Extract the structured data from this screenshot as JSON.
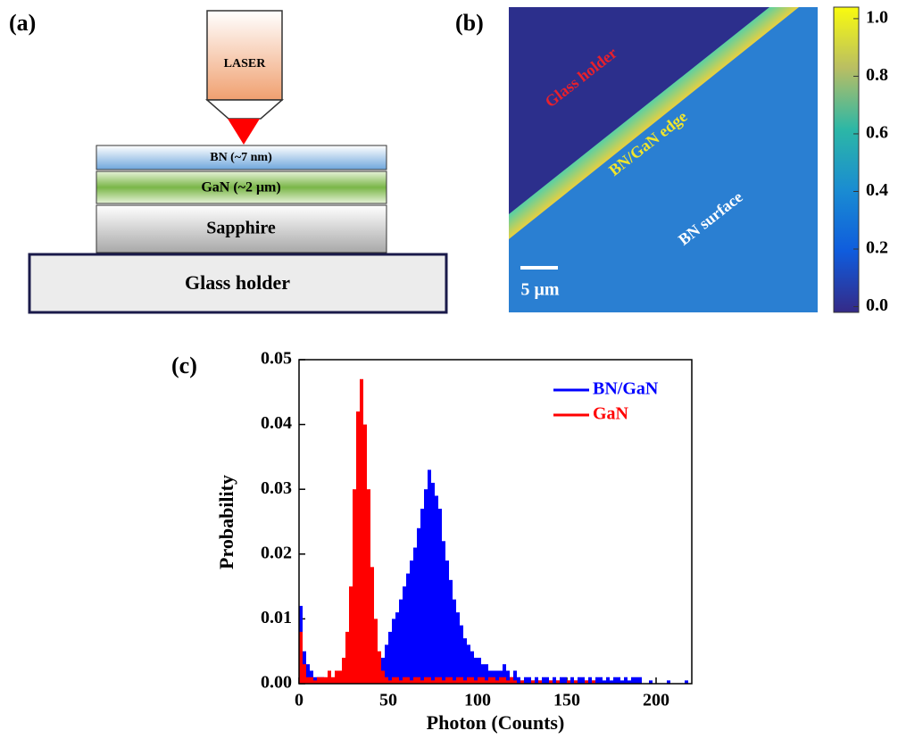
{
  "panel_a": {
    "label": "(a)",
    "laser": "LASER",
    "layers": [
      "BN (~7 nm)",
      "GaN (~2 μm)",
      "Sapphire"
    ],
    "holder": "Glass holder"
  },
  "panel_b": {
    "label": "(b)",
    "annotations": [
      "Glass holder",
      "BN/GaN edge",
      "BN surface"
    ],
    "scale_bar": "5 μm",
    "colorbar": {
      "lim": [
        -0.02,
        1.04
      ],
      "ticks": [
        {
          "value": 0,
          "label": "0.0"
        },
        {
          "value": 0.2,
          "label": "0.2"
        },
        {
          "value": 0.4,
          "label": "0.4"
        },
        {
          "value": 0.6,
          "label": "0.6"
        },
        {
          "value": 0.8,
          "label": "0.8"
        },
        {
          "value": 1,
          "label": "1.0"
        }
      ]
    }
  },
  "chart_data": {
    "type": "histogram",
    "panel_label": "(c)",
    "x_label": "Photon (Counts)",
    "y_label": "Probability",
    "xlim": [
      0,
      220
    ],
    "ylim": [
      0,
      0.05
    ],
    "xticks": [
      0,
      50,
      100,
      150,
      200
    ],
    "yticks": [
      {
        "value": 0,
        "label": "0.00"
      },
      {
        "value": 0.01,
        "label": "0.01"
      },
      {
        "value": 0.02,
        "label": "0.02"
      },
      {
        "value": 0.03,
        "label": "0.03"
      },
      {
        "value": 0.04,
        "label": "0.04"
      },
      {
        "value": 0.05,
        "label": "0.05"
      }
    ],
    "bins": [
      0,
      2,
      4,
      6,
      8,
      10,
      12,
      14,
      16,
      18,
      20,
      22,
      24,
      26,
      28,
      30,
      32,
      34,
      36,
      38,
      40,
      42,
      44,
      46,
      48,
      50,
      52,
      54,
      56,
      58,
      60,
      62,
      64,
      66,
      68,
      70,
      72,
      74,
      76,
      78,
      80,
      82,
      84,
      86,
      88,
      90,
      92,
      94,
      96,
      98,
      100,
      102,
      104,
      106,
      108,
      110,
      112,
      114,
      116,
      118,
      120,
      122,
      124,
      126,
      128,
      130,
      132,
      134,
      136,
      138,
      140,
      142,
      144,
      146,
      148,
      150,
      152,
      154,
      156,
      158,
      160,
      162,
      164,
      166,
      168,
      170,
      172,
      174,
      176,
      178,
      180,
      182,
      184,
      186,
      188,
      190,
      192,
      194,
      196,
      198,
      200,
      202,
      204,
      206,
      208,
      210,
      212,
      214,
      216,
      218,
      220
    ],
    "series": [
      {
        "name": "BN/GaN",
        "color": "#0000ff",
        "values": [
          0.012,
          0.005,
          0.003,
          0.002,
          0.001,
          0.001,
          0.001,
          0.0005,
          0.001,
          0.0005,
          0.001,
          0.001,
          0.001,
          0.001,
          0.001,
          0.001,
          0.001,
          0.001,
          0.001,
          0.001,
          0.001,
          0.002,
          0.003,
          0.004,
          0.006,
          0.008,
          0.01,
          0.011,
          0.013,
          0.015,
          0.017,
          0.019,
          0.021,
          0.024,
          0.027,
          0.03,
          0.033,
          0.031,
          0.029,
          0.027,
          0.022,
          0.019,
          0.016,
          0.013,
          0.011,
          0.009,
          0.007,
          0.006,
          0.005,
          0.004,
          0.004,
          0.003,
          0.003,
          0.002,
          0.002,
          0.002,
          0.002,
          0.003,
          0.002,
          0.001,
          0.002,
          0.001,
          0.0005,
          0.001,
          0.001,
          0.0005,
          0.001,
          0.0005,
          0.001,
          0.001,
          0.0005,
          0.001,
          0.0005,
          0.001,
          0.001,
          0.0005,
          0.001,
          0.0005,
          0.001,
          0.001,
          0.0005,
          0.001,
          0.0005,
          0.001,
          0.001,
          0.0005,
          0.001,
          0.0005,
          0.001,
          0.001,
          0.0005,
          0.001,
          0.0005,
          0.001,
          0.001,
          0.001,
          0,
          0,
          0.0005,
          0,
          0,
          0,
          0,
          0.0005,
          0,
          0,
          0,
          0,
          0.0005,
          0
        ]
      },
      {
        "name": "GaN",
        "color": "#ff0000",
        "values": [
          0.008,
          0.003,
          0.001,
          0.001,
          0.0005,
          0.001,
          0.001,
          0.001,
          0.002,
          0.001,
          0.002,
          0.002,
          0.004,
          0.008,
          0.015,
          0.03,
          0.042,
          0.047,
          0.04,
          0.03,
          0.018,
          0.01,
          0.005,
          0.002,
          0.001,
          0.0005,
          0.001,
          0.001,
          0.0005,
          0.001,
          0.001,
          0.0005,
          0.001,
          0.001,
          0.0005,
          0.001,
          0.001,
          0.0005,
          0.001,
          0.001,
          0.0005,
          0.001,
          0.001,
          0.0005,
          0.001,
          0.001,
          0.0005,
          0.001,
          0.001,
          0.0005,
          0.001,
          0.001,
          0.0005,
          0.001,
          0.001,
          0.0005,
          0.001,
          0.001,
          0.0005,
          0.001,
          0.0005,
          0,
          0.0005,
          0,
          0,
          0.0005,
          0,
          0.0005,
          0,
          0,
          0.0005,
          0,
          0.0005,
          0,
          0,
          0.0005,
          0,
          0.0005,
          0,
          0,
          0.0005,
          0,
          0.0005,
          0,
          0,
          0,
          0,
          0,
          0,
          0,
          0,
          0,
          0,
          0,
          0,
          0,
          0,
          0,
          0,
          0,
          0,
          0,
          0,
          0,
          0,
          0,
          0,
          0,
          0,
          0
        ]
      }
    ]
  }
}
